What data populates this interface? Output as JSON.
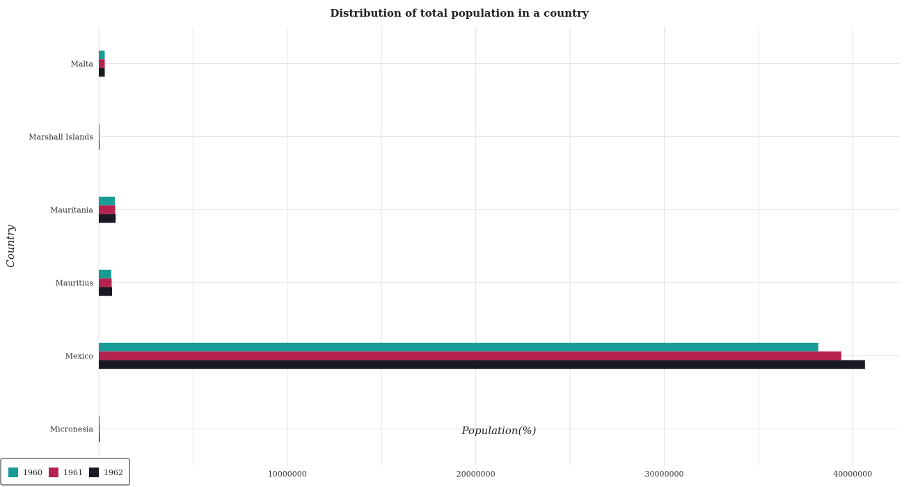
{
  "chart_data": {
    "type": "bar",
    "orientation": "horizontal",
    "title": "Distribution of total population in a country",
    "xlabel": "Population(%)",
    "ylabel": "Country",
    "xlim": [
      0,
      42500000
    ],
    "xticks": [
      0,
      10000000,
      20000000,
      30000000,
      40000000
    ],
    "xtick_labels": [
      "0",
      "10000000",
      "20000000",
      "30000000",
      "40000000"
    ],
    "grid": true,
    "legend_position": "bottom-left",
    "categories": [
      "Malta",
      "Marshall Islands",
      "Mauritania",
      "Mauritius",
      "Mexico",
      "Micronesia"
    ],
    "series": [
      {
        "name": "1960",
        "color": "#1a9c96",
        "values": [
          312500,
          14800,
          849400,
          660000,
          38174100,
          44500
        ]
      },
      {
        "name": "1961",
        "color": "#b5224d",
        "values": [
          314800,
          15400,
          871200,
          681000,
          39394100,
          45900
        ]
      },
      {
        "name": "1962",
        "color": "#1a1a24",
        "values": [
          316000,
          16100,
          893300,
          701000,
          40649000,
          47400
        ]
      }
    ]
  }
}
